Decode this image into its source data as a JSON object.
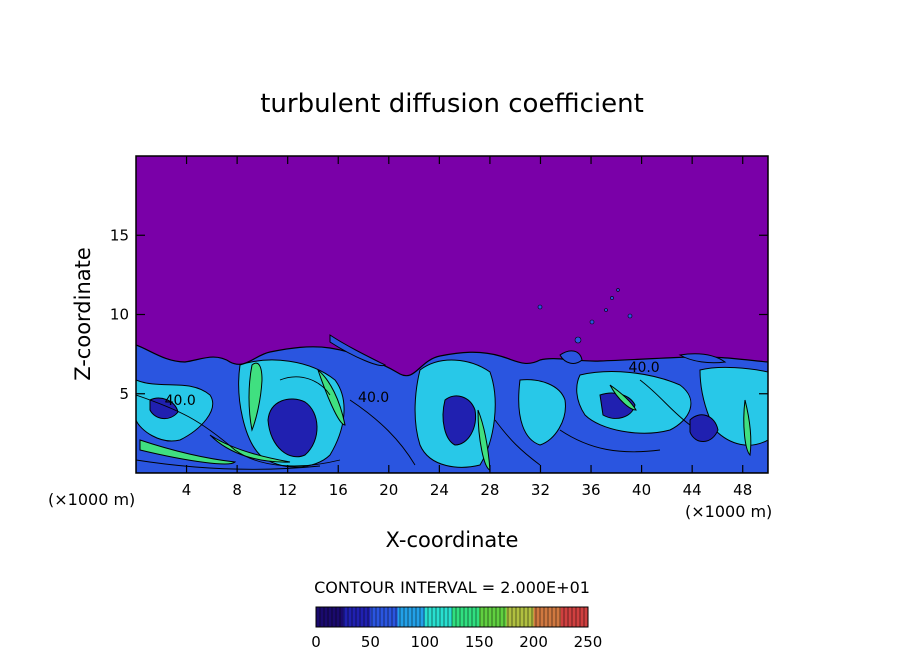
{
  "chart_data": {
    "type": "heatmap",
    "title": "turbulent diffusion coefficient",
    "xlabel": "X-coordinate",
    "ylabel": "Z-coordinate",
    "x_unit_left": "(×1000 m)",
    "x_unit_right": "(×1000 m)",
    "xlim": [
      0,
      50
    ],
    "ylim": [
      0,
      20
    ],
    "x_ticks": [
      4,
      8,
      12,
      16,
      20,
      24,
      28,
      32,
      36,
      40,
      44,
      48
    ],
    "y_ticks": [
      5,
      10,
      15
    ],
    "contour_interval_text": "CONTOUR INTERVAL = 2.000E+01",
    "contour_labels": [
      {
        "text": "40.0",
        "x": 3.5,
        "z": 4.6
      },
      {
        "text": "40.0",
        "x": 18.8,
        "z": 4.8
      },
      {
        "text": "40.0",
        "x": 40.2,
        "z": 6.7
      }
    ],
    "colorbar": {
      "min": 0,
      "max": 250,
      "ticks": [
        0,
        50,
        100,
        150,
        200,
        250
      ],
      "colors": [
        "#1a0a6e",
        "#2020b0",
        "#2a55e0",
        "#22a0e8",
        "#28e0d0",
        "#30e080",
        "#60d040",
        "#b0c040",
        "#d07840",
        "#d04040"
      ]
    },
    "background_color": "#7a00a8",
    "boundary_layer_top_km": 7.5
  }
}
